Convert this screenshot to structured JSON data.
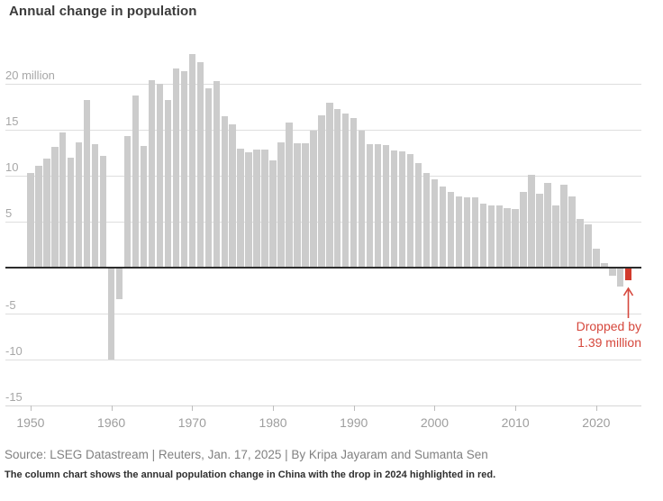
{
  "title": "Annual change in population",
  "chart_data": {
    "type": "bar",
    "title": "Annual change in population",
    "unit": "million",
    "years": [
      1950,
      1951,
      1952,
      1953,
      1954,
      1955,
      1956,
      1957,
      1958,
      1959,
      1960,
      1961,
      1962,
      1963,
      1964,
      1965,
      1966,
      1967,
      1968,
      1969,
      1970,
      1971,
      1972,
      1973,
      1974,
      1975,
      1976,
      1977,
      1978,
      1979,
      1980,
      1981,
      1982,
      1983,
      1984,
      1985,
      1986,
      1987,
      1988,
      1989,
      1990,
      1991,
      1992,
      1993,
      1994,
      1995,
      1996,
      1997,
      1998,
      1999,
      2000,
      2001,
      2002,
      2003,
      2004,
      2005,
      2006,
      2007,
      2008,
      2009,
      2010,
      2011,
      2012,
      2013,
      2014,
      2015,
      2016,
      2017,
      2018,
      2019,
      2020,
      2021,
      2022,
      2023,
      2024
    ],
    "values": [
      10.29,
      11.04,
      11.82,
      13.14,
      14.7,
      11.99,
      13.63,
      18.25,
      13.41,
      12.13,
      -10.0,
      -3.48,
      14.36,
      18.77,
      13.27,
      20.39,
      20.04,
      18.26,
      21.66,
      21.37,
      23.21,
      22.37,
      19.48,
      20.34,
      16.48,
      15.61,
      12.97,
      12.57,
      12.85,
      12.83,
      11.63,
      13.67,
      15.82,
      13.54,
      13.49,
      14.94,
      16.56,
      17.93,
      17.26,
      16.78,
      16.29,
      14.9,
      13.48,
      13.46,
      13.33,
      12.71,
      12.68,
      12.37,
      11.35,
      10.25,
      9.57,
      8.84,
      8.26,
      7.74,
      7.61,
      7.68,
      6.92,
      6.81,
      6.73,
      6.48,
      6.41,
      8.25,
      10.06,
      8.04,
      9.2,
      6.8,
      9.06,
      7.79,
      5.3,
      4.67,
      2.04,
      0.48,
      -0.85,
      -2.08,
      -1.39
    ],
    "ylim": [
      -15,
      25
    ],
    "yticks": [
      {
        "value": 20,
        "label": "20 million"
      },
      {
        "value": 15,
        "label": "15"
      },
      {
        "value": 10,
        "label": "10"
      },
      {
        "value": 5,
        "label": "5"
      },
      {
        "value": -5,
        "label": "-5"
      },
      {
        "value": -10,
        "label": "-10"
      },
      {
        "value": -15,
        "label": "-15"
      }
    ],
    "xticks": [
      1950,
      1960,
      1970,
      1980,
      1990,
      2000,
      2010,
      2020
    ],
    "grid": true,
    "legend": "none",
    "highlight_year": 2024,
    "annotation": {
      "line1": "Dropped by",
      "line2": "1.39 million"
    },
    "colors": {
      "bar": "#cccccc",
      "highlight": "#d23a2c",
      "annotation_red": "#d6483d",
      "gridline": "#dedede",
      "zero_line": "#2c2c2c",
      "axis_label": "#9e9e9e"
    }
  },
  "source_line": "Source: LSEG Datastream | Reuters, Jan. 17, 2025 | By Kripa Jayaram and Sumanta Sen",
  "caption": "The column chart shows the annual population change in China with the drop in 2024 highlighted in red."
}
